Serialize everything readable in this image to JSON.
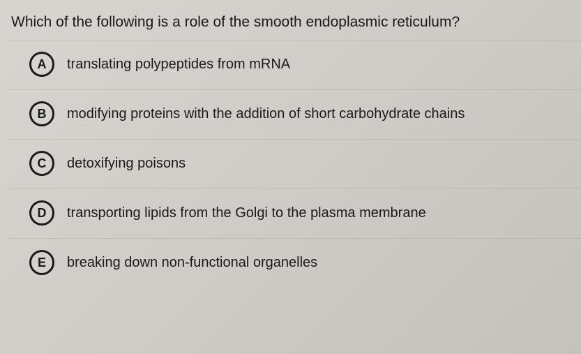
{
  "question": {
    "text": "Which of the following is a role of the smooth endoplasmic reticulum?",
    "fontsize": 21,
    "color": "#1a1a1a"
  },
  "options": [
    {
      "letter": "A",
      "text": "translating polypeptides from mRNA"
    },
    {
      "letter": "B",
      "text": "modifying proteins with the addition of short carbohydrate chains"
    },
    {
      "letter": "C",
      "text": "detoxifying poisons"
    },
    {
      "letter": "D",
      "text": "transporting lipids from the Golgi to the plasma membrane"
    },
    {
      "letter": "E",
      "text": "breaking down non-functional organelles"
    }
  ],
  "style": {
    "background_color": "#d4d1cc",
    "circle_border_color": "#1a1a1a",
    "circle_border_width": 3,
    "option_fontsize": 20,
    "letter_fontsize": 18,
    "text_color": "#1a1a1a"
  }
}
